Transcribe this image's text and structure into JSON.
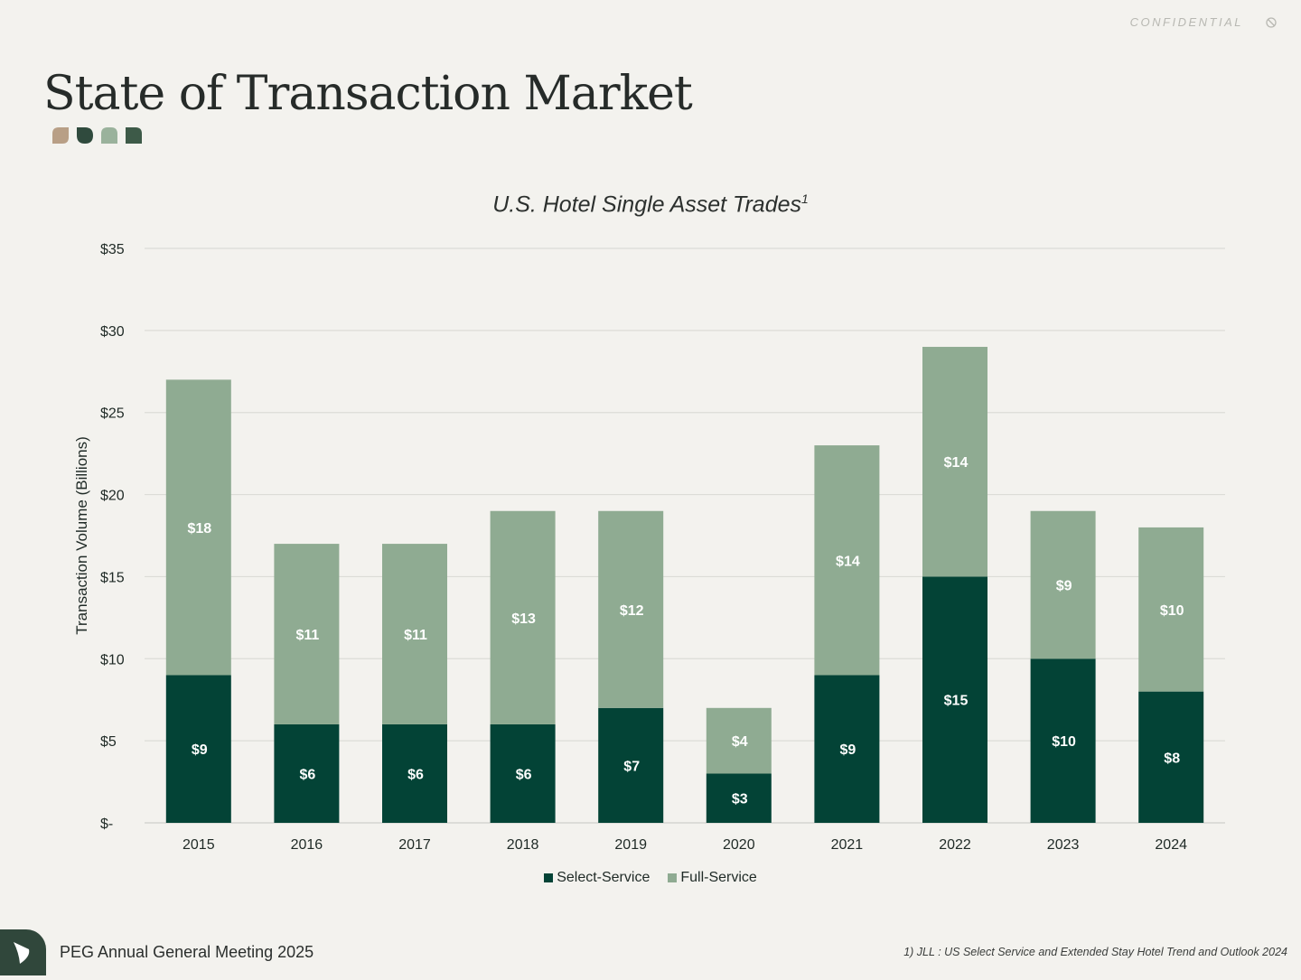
{
  "header": {
    "confidential": "CONFIDENTIAL",
    "title": "State of Transaction Market",
    "leaf_colors": [
      "#b89f86",
      "#2f4a3d",
      "#9ab29c",
      "#3d5a48"
    ]
  },
  "chart_data": {
    "type": "bar",
    "stacked": true,
    "title": "U.S. Hotel Single Asset Trades",
    "title_superscript": "1",
    "xlabel": "",
    "ylabel": "Transaction Volume (Billions)",
    "categories": [
      "2015",
      "2016",
      "2017",
      "2018",
      "2019",
      "2020",
      "2021",
      "2022",
      "2023",
      "2024"
    ],
    "series": [
      {
        "name": "Select-Service",
        "color": "#034336",
        "values": [
          9,
          6,
          6,
          6,
          7,
          3,
          9,
          15,
          10,
          8
        ],
        "labels": [
          "$9",
          "$6",
          "$6",
          "$6",
          "$7",
          "$3",
          "$9",
          "$15",
          "$10",
          "$8"
        ]
      },
      {
        "name": "Full-Service",
        "color": "#8fab92",
        "values": [
          18,
          11,
          11,
          13,
          12,
          4,
          14,
          14,
          9,
          10
        ],
        "labels": [
          "$18",
          "$11",
          "$11",
          "$13",
          "$12",
          "$4",
          "$14",
          "$14",
          "$9",
          "$10"
        ]
      }
    ],
    "ylim": [
      0,
      35
    ],
    "yticks": [
      0,
      5,
      10,
      15,
      20,
      25,
      30,
      35
    ],
    "ytick_labels": [
      "$-",
      "$5",
      "$10",
      "$15",
      "$20",
      "$25",
      "$30",
      "$35"
    ],
    "grid": true,
    "legend_position": "bottom-center"
  },
  "footer": {
    "meeting": "PEG Annual General Meeting 2025",
    "footnote": "1) JLL : US Select Service and Extended Stay Hotel Trend and Outlook 2024"
  }
}
